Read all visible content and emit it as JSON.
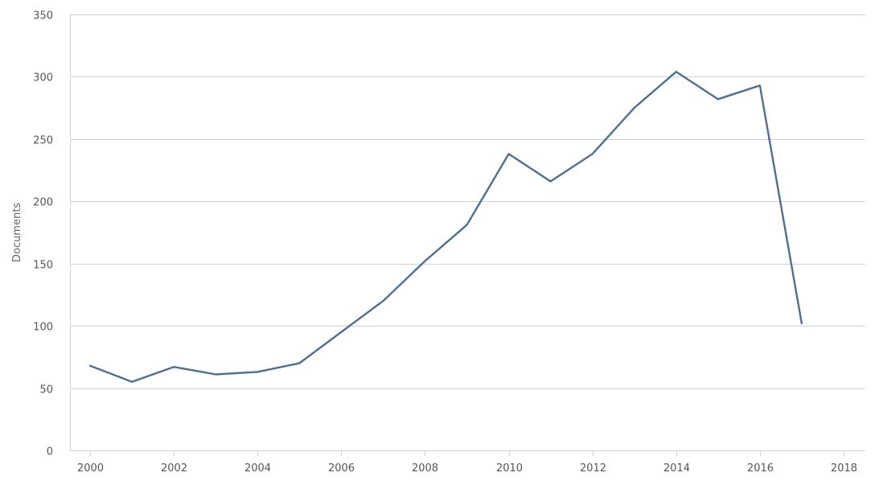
{
  "chart_data": {
    "type": "line",
    "title": "",
    "xlabel": "",
    "ylabel": "Documents",
    "xlim": [
      2000,
      2018
    ],
    "ylim": [
      0,
      350
    ],
    "x_ticks": [
      2000,
      2002,
      2004,
      2006,
      2008,
      2010,
      2012,
      2014,
      2016,
      2018
    ],
    "y_ticks": [
      0,
      50,
      100,
      150,
      200,
      250,
      300,
      350
    ],
    "grid": "horizontal",
    "legend": "none",
    "series": [
      {
        "color": "#4f6f91",
        "x": [
          2000,
          2001,
          2002,
          2003,
          2004,
          2005,
          2006,
          2007,
          2008,
          2009,
          2010,
          2011,
          2012,
          2013,
          2014,
          2015,
          2016,
          2017
        ],
        "values": [
          68,
          55,
          67,
          61,
          63,
          70,
          95,
          120,
          152,
          181,
          238,
          216,
          238,
          275,
          304,
          282,
          293,
          102
        ]
      }
    ]
  }
}
